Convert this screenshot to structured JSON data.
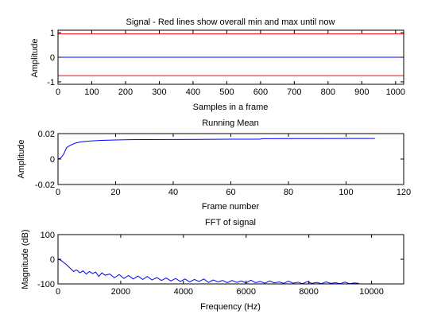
{
  "chart_data": [
    {
      "type": "line",
      "title": "Signal - Red lines show overall min and max until now",
      "xlabel": "Samples in a frame",
      "ylabel": "Amplitude",
      "xlim": [
        0,
        1024
      ],
      "ylim": [
        -1.1,
        1.1
      ],
      "xticks": [
        0,
        100,
        200,
        300,
        400,
        500,
        600,
        700,
        800,
        900,
        1000
      ],
      "yticks": [
        -1,
        0,
        1
      ],
      "series": [
        {
          "color": "#0000ff",
          "x": [
            0,
            1024
          ],
          "y": [
            0,
            0
          ]
        },
        {
          "color": "#ff0000",
          "x": [
            0,
            1024
          ],
          "y": [
            0.95,
            0.95
          ]
        },
        {
          "color": "#ff0000",
          "x": [
            0,
            1024
          ],
          "y": [
            -0.75,
            -0.75
          ]
        }
      ]
    },
    {
      "type": "line",
      "title": "Running Mean",
      "xlabel": "Frame number",
      "ylabel": "Amplitude",
      "xlim": [
        0,
        120
      ],
      "ylim": [
        -0.02,
        0.02
      ],
      "xticks": [
        0,
        20,
        40,
        60,
        80,
        100,
        120
      ],
      "yticks": [
        -0.02,
        0,
        0.02
      ],
      "series": [
        {
          "color": "#0000ff",
          "x": [
            0,
            1,
            2,
            3,
            4,
            5,
            6,
            8,
            10,
            12,
            15,
            20,
            25,
            30,
            40,
            50,
            60,
            70,
            71,
            80,
            90,
            100,
            110
          ],
          "y": [
            0.0,
            0.001,
            0.004,
            0.009,
            0.0105,
            0.0115,
            0.0125,
            0.0135,
            0.014,
            0.0143,
            0.0147,
            0.015,
            0.0152,
            0.0153,
            0.0154,
            0.0155,
            0.0156,
            0.0156,
            0.016,
            0.0161,
            0.0161,
            0.0162,
            0.0162
          ]
        }
      ]
    },
    {
      "type": "line",
      "title": "FFT of signal",
      "xlabel": "Frequency (Hz)",
      "ylabel": "Magnitude (dB)",
      "xlim": [
        0,
        11025
      ],
      "ylim": [
        -100,
        100
      ],
      "xticks": [
        0,
        2000,
        4000,
        6000,
        8000,
        10000
      ],
      "yticks": [
        -100,
        0,
        100
      ],
      "series": [
        {
          "color": "#0000ff",
          "x": [
            0,
            100,
            200,
            300,
            400,
            500,
            550,
            600,
            700,
            800,
            900,
            1000,
            1100,
            1200,
            1300,
            1400,
            1500,
            1650,
            1800,
            1950,
            2100,
            2250,
            2400,
            2550,
            2700,
            2850,
            3000,
            3150,
            3300,
            3450,
            3600,
            3750,
            3900,
            4050,
            4200,
            4350,
            4500,
            4650,
            4800,
            4950,
            5100,
            5250,
            5400,
            5550,
            5700,
            5850,
            6000,
            6150,
            6300,
            6450,
            6600,
            6750,
            6900,
            7050,
            7200,
            7350,
            7500,
            7650,
            7800,
            7950,
            8100,
            8250,
            8400,
            8550,
            8700,
            8850,
            9000,
            9150,
            9300,
            9450,
            9600
          ],
          "y": [
            0,
            -5,
            -15,
            -25,
            -38,
            -50,
            -45,
            -44,
            -55,
            -47,
            -60,
            -50,
            -58,
            -52,
            -70,
            -55,
            -65,
            -60,
            -75,
            -62,
            -78,
            -66,
            -80,
            -68,
            -82,
            -70,
            -84,
            -74,
            -86,
            -76,
            -88,
            -78,
            -90,
            -80,
            -92,
            -82,
            -90,
            -80,
            -94,
            -84,
            -92,
            -86,
            -95,
            -86,
            -94,
            -88,
            -96,
            -85,
            -95,
            -90,
            -97,
            -88,
            -96,
            -92,
            -98,
            -89,
            -97,
            -93,
            -99,
            -91,
            -98,
            -94,
            -99,
            -92,
            -98,
            -95,
            -99,
            -93,
            -99,
            -96,
            -98
          ]
        }
      ]
    }
  ]
}
